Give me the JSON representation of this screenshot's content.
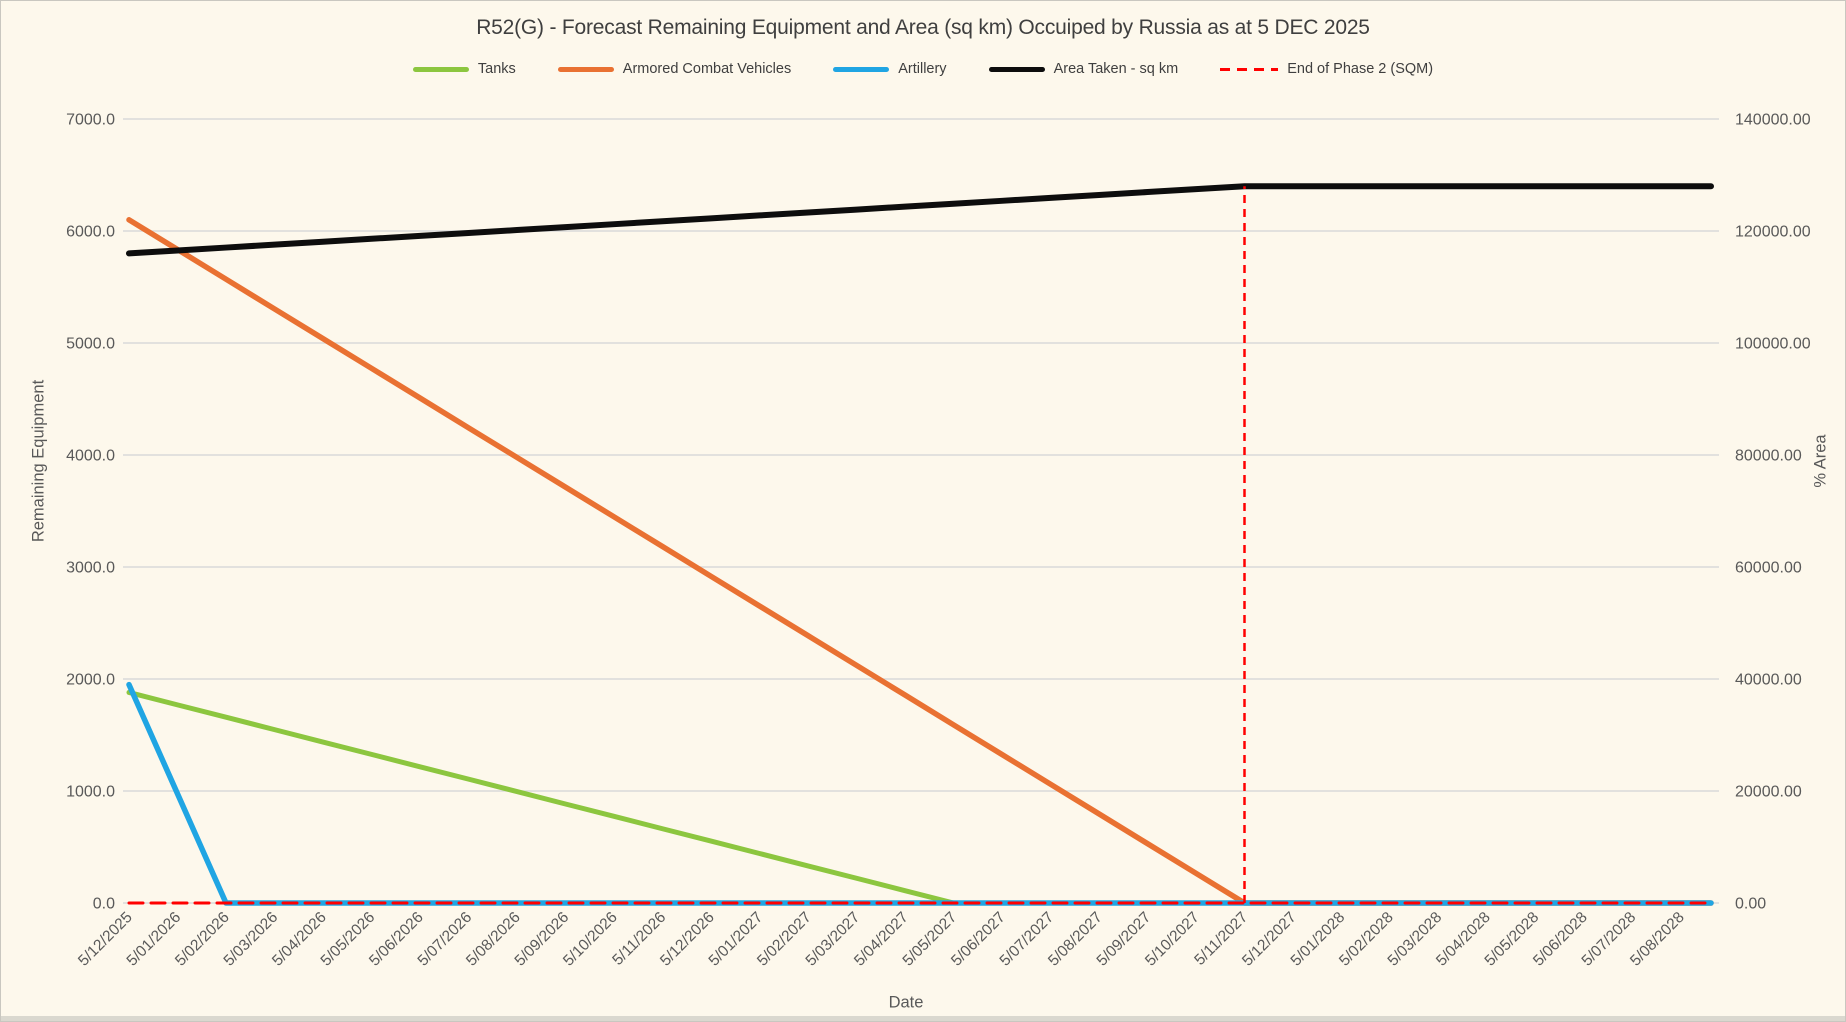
{
  "colors": {
    "background": "#FDF8EC",
    "gridline": "#D9D9D9",
    "axis_text": "#595959",
    "title_text": "#3F3F3F"
  },
  "chart_data": {
    "type": "line",
    "title": "R52(G) - Forecast Remaining Equipment and Area (sq km) Occuiped by Russia as at 5 DEC 2025",
    "x_title": "Date",
    "grid": "horizontal",
    "legend_position": "top",
    "x": [
      "5/12/2025",
      "5/01/2026",
      "5/02/2026",
      "5/03/2026",
      "5/04/2026",
      "5/05/2026",
      "5/06/2026",
      "5/07/2026",
      "5/08/2026",
      "5/09/2026",
      "5/10/2026",
      "5/11/2026",
      "5/12/2026",
      "5/01/2027",
      "5/02/2027",
      "5/03/2027",
      "5/04/2027",
      "5/05/2027",
      "5/06/2027",
      "5/07/2027",
      "5/08/2027",
      "5/09/2027",
      "5/10/2027",
      "5/11/2027",
      "5/12/2027",
      "5/01/2028",
      "5/02/2028",
      "5/03/2028",
      "5/04/2028",
      "5/05/2028",
      "5/06/2028",
      "5/07/2028",
      "5/08/2028"
    ],
    "y_left": {
      "title": "Remaining Equipment",
      "min": 0,
      "max": 7000,
      "step": 1000,
      "tick_labels": [
        "0.0",
        "1000.0",
        "2000.0",
        "3000.0",
        "4000.0",
        "5000.0",
        "6000.0",
        "7000.0"
      ]
    },
    "y_right": {
      "title": "% Area",
      "min": 0,
      "max": 140000,
      "step": 20000,
      "tick_labels": [
        "0.00",
        "20000.00",
        "40000.00",
        "60000.00",
        "80000.00",
        "100000.00",
        "120000.00",
        "140000.00"
      ]
    },
    "series": [
      {
        "name": "Tanks",
        "axis": "left",
        "color": "#8CC63F",
        "width": 5,
        "values": [
          1880,
          1769,
          1659,
          1548,
          1437,
          1327,
          1216,
          1106,
          995,
          884,
          774,
          663,
          553,
          442,
          331,
          221,
          110,
          0,
          0,
          0,
          0,
          0,
          0,
          0,
          0,
          0,
          0,
          0,
          0,
          0,
          0,
          0,
          0
        ]
      },
      {
        "name": "Armored Combat Vehicles",
        "axis": "left",
        "color": "#E97132",
        "width": 5.5,
        "values": [
          6100,
          5835,
          5570,
          5304,
          5039,
          4774,
          4509,
          4243,
          3978,
          3713,
          3448,
          3183,
          2917,
          2652,
          2387,
          2122,
          1857,
          1591,
          1326,
          1061,
          796,
          530,
          265,
          0,
          0,
          0,
          0,
          0,
          0,
          0,
          0,
          0,
          0
        ]
      },
      {
        "name": "Artillery",
        "axis": "left",
        "color": "#20A5E3",
        "width": 5.5,
        "values": [
          1950,
          975,
          0,
          0,
          0,
          0,
          0,
          0,
          0,
          0,
          0,
          0,
          0,
          0,
          0,
          0,
          0,
          0,
          0,
          0,
          0,
          0,
          0,
          0,
          0,
          0,
          0,
          0,
          0,
          0,
          0,
          0,
          0
        ]
      },
      {
        "name": "Area Taken - sq km",
        "axis": "right",
        "color": "#0D0D0D",
        "width": 6,
        "values": [
          116000,
          116522,
          117043,
          117565,
          118087,
          118609,
          119130,
          119652,
          120174,
          120696,
          121217,
          121739,
          122261,
          122783,
          123304,
          123826,
          124348,
          124870,
          125391,
          125913,
          126435,
          126957,
          127478,
          128000,
          128000,
          128000,
          128000,
          128000,
          128000,
          128000,
          128000,
          128000,
          128000
        ]
      },
      {
        "name": "End of Phase 2 (SQM)",
        "axis": "right",
        "color": "#FF0000",
        "width": 3,
        "dash": [
          14,
          8
        ],
        "values": [
          0,
          0,
          0,
          0,
          0,
          0,
          0,
          0,
          0,
          0,
          0,
          0,
          0,
          0,
          0,
          0,
          0,
          0,
          0,
          0,
          0,
          0,
          0,
          0,
          0,
          0,
          0,
          0,
          0,
          0,
          0,
          0,
          0
        ],
        "vline": {
          "x": "5/11/2027",
          "from": 0,
          "to": 128000,
          "dash": [
            8,
            6
          ]
        }
      }
    ],
    "draw_order": [
      0,
      1,
      3,
      2,
      4
    ]
  }
}
